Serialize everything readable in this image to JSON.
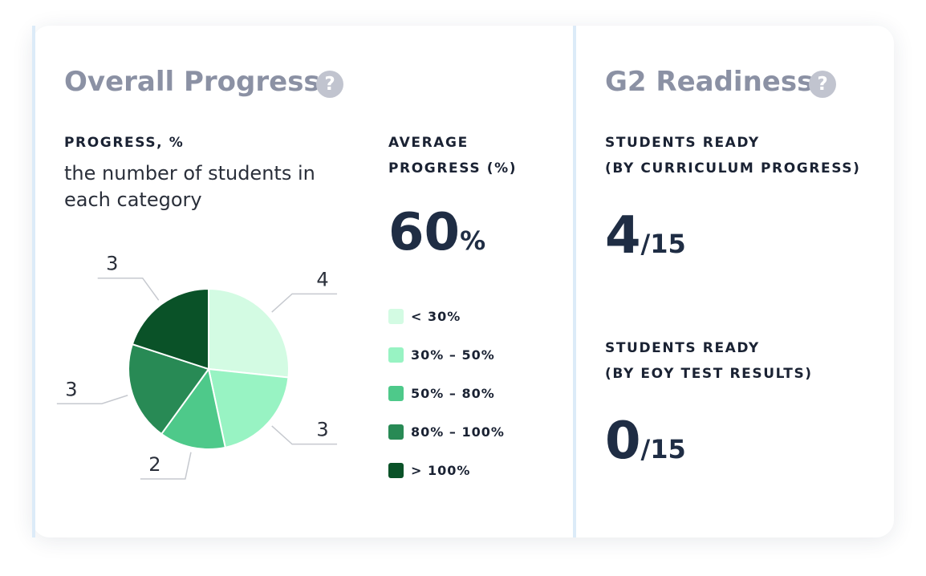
{
  "overall": {
    "title": "Overall Progress",
    "help_icon": "question-icon",
    "progress_label": "PROGRESS, %",
    "progress_subtitle": "the number of students in each category",
    "average_label_line1": "AVERAGE",
    "average_label_line2": "PROGRESS (%)",
    "average_value": "60",
    "average_suffix": "%"
  },
  "readiness": {
    "title": "G2 Readiness",
    "help_icon": "question-icon",
    "curriculum_label_line1": "STUDENTS READY",
    "curriculum_label_line2": "(BY CURRICULUM PROGRESS)",
    "curriculum_value": "4",
    "curriculum_total": "/15",
    "eoy_label_line1": "STUDENTS READY",
    "eoy_label_line2": "(BY EOY TEST RESULTS)",
    "eoy_value": "0",
    "eoy_total": "/15"
  },
  "chart_data": {
    "type": "pie",
    "categories": [
      "< 30%",
      "30% – 50%",
      "50% – 80%",
      "80% – 100%",
      "> 100%"
    ],
    "values": [
      4,
      3,
      2,
      3,
      3
    ],
    "colors": [
      "#d3fbe3",
      "#98f3c3",
      "#4ec98a",
      "#288a55",
      "#0a5228"
    ],
    "legend": "right"
  }
}
